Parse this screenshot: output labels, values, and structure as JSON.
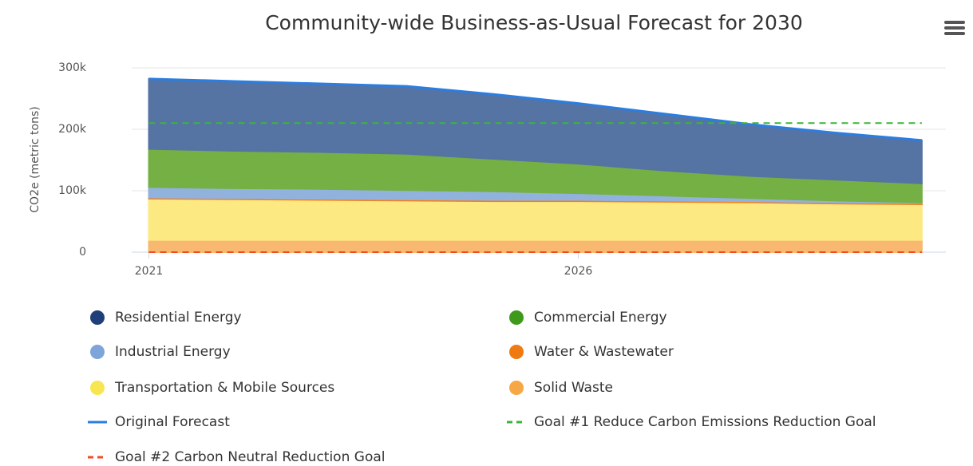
{
  "chart_data": {
    "type": "area",
    "stacked": true,
    "title": "Community-wide Business-as-Usual Forecast for 2030",
    "y_label": "CO2e (metric tons)",
    "x": [
      2021,
      2022,
      2023,
      2024,
      2025,
      2026,
      2027,
      2028,
      2029,
      2030
    ],
    "xlim": [
      2020.8,
      2030.28
    ],
    "xticks": [
      2021,
      2026
    ],
    "ylim": [
      0,
      300000
    ],
    "yticks": [
      0,
      {
        "value": 100000,
        "label": "100k"
      },
      {
        "value": 200000,
        "label": "200k"
      },
      {
        "value": 300000,
        "label": "300k"
      }
    ],
    "grid": true,
    "series": [
      {
        "name": "Residential Energy",
        "kind": "area",
        "color": "#5573a3",
        "marker_color": "#1f3f7a",
        "values": [
          114000,
          113000,
          111000,
          110000,
          105000,
          98000,
          92000,
          84000,
          76000,
          70000
        ]
      },
      {
        "name": "Commercial Energy",
        "kind": "area",
        "color": "#74b044",
        "marker_color": "#3f9a1c",
        "values": [
          62000,
          61000,
          60000,
          59000,
          53000,
          48000,
          41000,
          36000,
          34000,
          31000
        ]
      },
      {
        "name": "Industrial Energy",
        "kind": "area",
        "color": "#92b2de",
        "marker_color": "#7fa4da",
        "values": [
          17000,
          16000,
          16000,
          15000,
          14000,
          11000,
          8000,
          5000,
          3000,
          1000
        ]
      },
      {
        "name": "Water & Wastewater",
        "kind": "area",
        "color": "#f2801e",
        "marker_color": "#f07a12",
        "values": [
          2000,
          2000,
          2000,
          2000,
          2000,
          2000,
          2000,
          2000,
          2000,
          2000
        ]
      },
      {
        "name": "Transportation & Mobile Sources",
        "kind": "area",
        "color": "#fde982",
        "marker_color": "#f8e650",
        "values": [
          67000,
          66000,
          65000,
          64000,
          63000,
          63000,
          62000,
          61000,
          59000,
          58000
        ]
      },
      {
        "name": "Solid Waste",
        "kind": "area",
        "color": "#f8b870",
        "marker_color": "#f6a846",
        "values": [
          20000,
          20000,
          20000,
          20000,
          20000,
          20000,
          20000,
          20000,
          20000,
          20000
        ]
      },
      {
        "name": "Original Forecast",
        "kind": "line",
        "dashed": false,
        "color": "#2b7de0",
        "values": [
          282000,
          278000,
          274000,
          270000,
          257000,
          242000,
          225000,
          208000,
          194000,
          182000
        ]
      },
      {
        "name": "Goal #1 Reduce Carbon Emissions Reduction Goal",
        "kind": "line",
        "dashed": true,
        "color": "#3cb43c",
        "values": [
          210000,
          210000,
          210000,
          210000,
          210000,
          210000,
          210000,
          210000,
          210000,
          210000
        ]
      },
      {
        "name": "Goal #2 Carbon Neutral Reduction Goal",
        "kind": "line",
        "dashed": true,
        "color": "#f04a2a",
        "values": [
          0,
          0,
          0,
          0,
          0,
          0,
          0,
          0,
          0,
          0
        ]
      }
    ]
  }
}
